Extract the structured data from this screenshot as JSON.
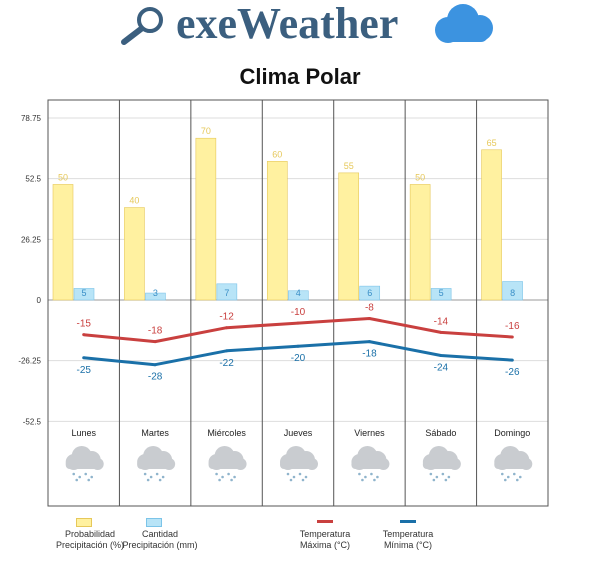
{
  "brand": {
    "name": "exeWeather",
    "search_icon": "magnifier-icon",
    "cloud_icon": "cloud-icon"
  },
  "chart_data": {
    "type": "bar",
    "title": "Clima Polar",
    "categories": [
      "Lunes",
      "Martes",
      "Miércoles",
      "Jueves",
      "Viernes",
      "Sábado",
      "Domingo"
    ],
    "series": [
      {
        "name": "Probabilidad Precipitación (%)",
        "type": "bar",
        "color": "#fff1a0",
        "values": [
          50,
          40,
          70,
          60,
          55,
          50,
          65
        ]
      },
      {
        "name": "Cantidad Precipitación (mm)",
        "type": "bar",
        "color": "#b8e4f7",
        "values": [
          5,
          3,
          7,
          4,
          6,
          5,
          8
        ]
      },
      {
        "name": "Temperatura Máxima (°C)",
        "type": "line",
        "color": "#c9403f",
        "values": [
          -15,
          -18,
          -12,
          -10,
          -8,
          -14,
          -16
        ]
      },
      {
        "name": "Temperatura Mínima (°C)",
        "type": "line",
        "color": "#1a70a8",
        "values": [
          -25,
          -28,
          -22,
          -20,
          -18,
          -24,
          -26
        ]
      }
    ],
    "y_ticks": [
      "78.75",
      "52.5",
      "26.25",
      "0",
      "-26.25",
      "-52.5"
    ],
    "ylim": [
      -52.5,
      78.75
    ],
    "grid": true,
    "legend_placement": "bottom",
    "weather_icon": "snow-cloud-icon",
    "colors": {
      "bar_label": "#e6c85a",
      "small_bar_label": "#3a8fc7",
      "max_label": "#c9403f",
      "min_label": "#1a70a8",
      "grid": "#dddddd"
    }
  },
  "legend": [
    {
      "label_line1": "Probabilidad",
      "label_line2": "Precipitación (%)",
      "swatch": "bar",
      "color": "#fff1a0",
      "stroke": "#e6c85a"
    },
    {
      "label_line1": "Cantidad",
      "label_line2": "Precipitación (mm)",
      "swatch": "bar",
      "color": "#b8e4f7",
      "stroke": "#7cc4e8"
    },
    {
      "label_line1": "Temperatura",
      "label_line2": "Máxima (°C)",
      "swatch": "line",
      "color": "#c9403f"
    },
    {
      "label_line1": "Temperatura",
      "label_line2": "Mínima (°C)",
      "swatch": "line",
      "color": "#1a70a8"
    }
  ]
}
